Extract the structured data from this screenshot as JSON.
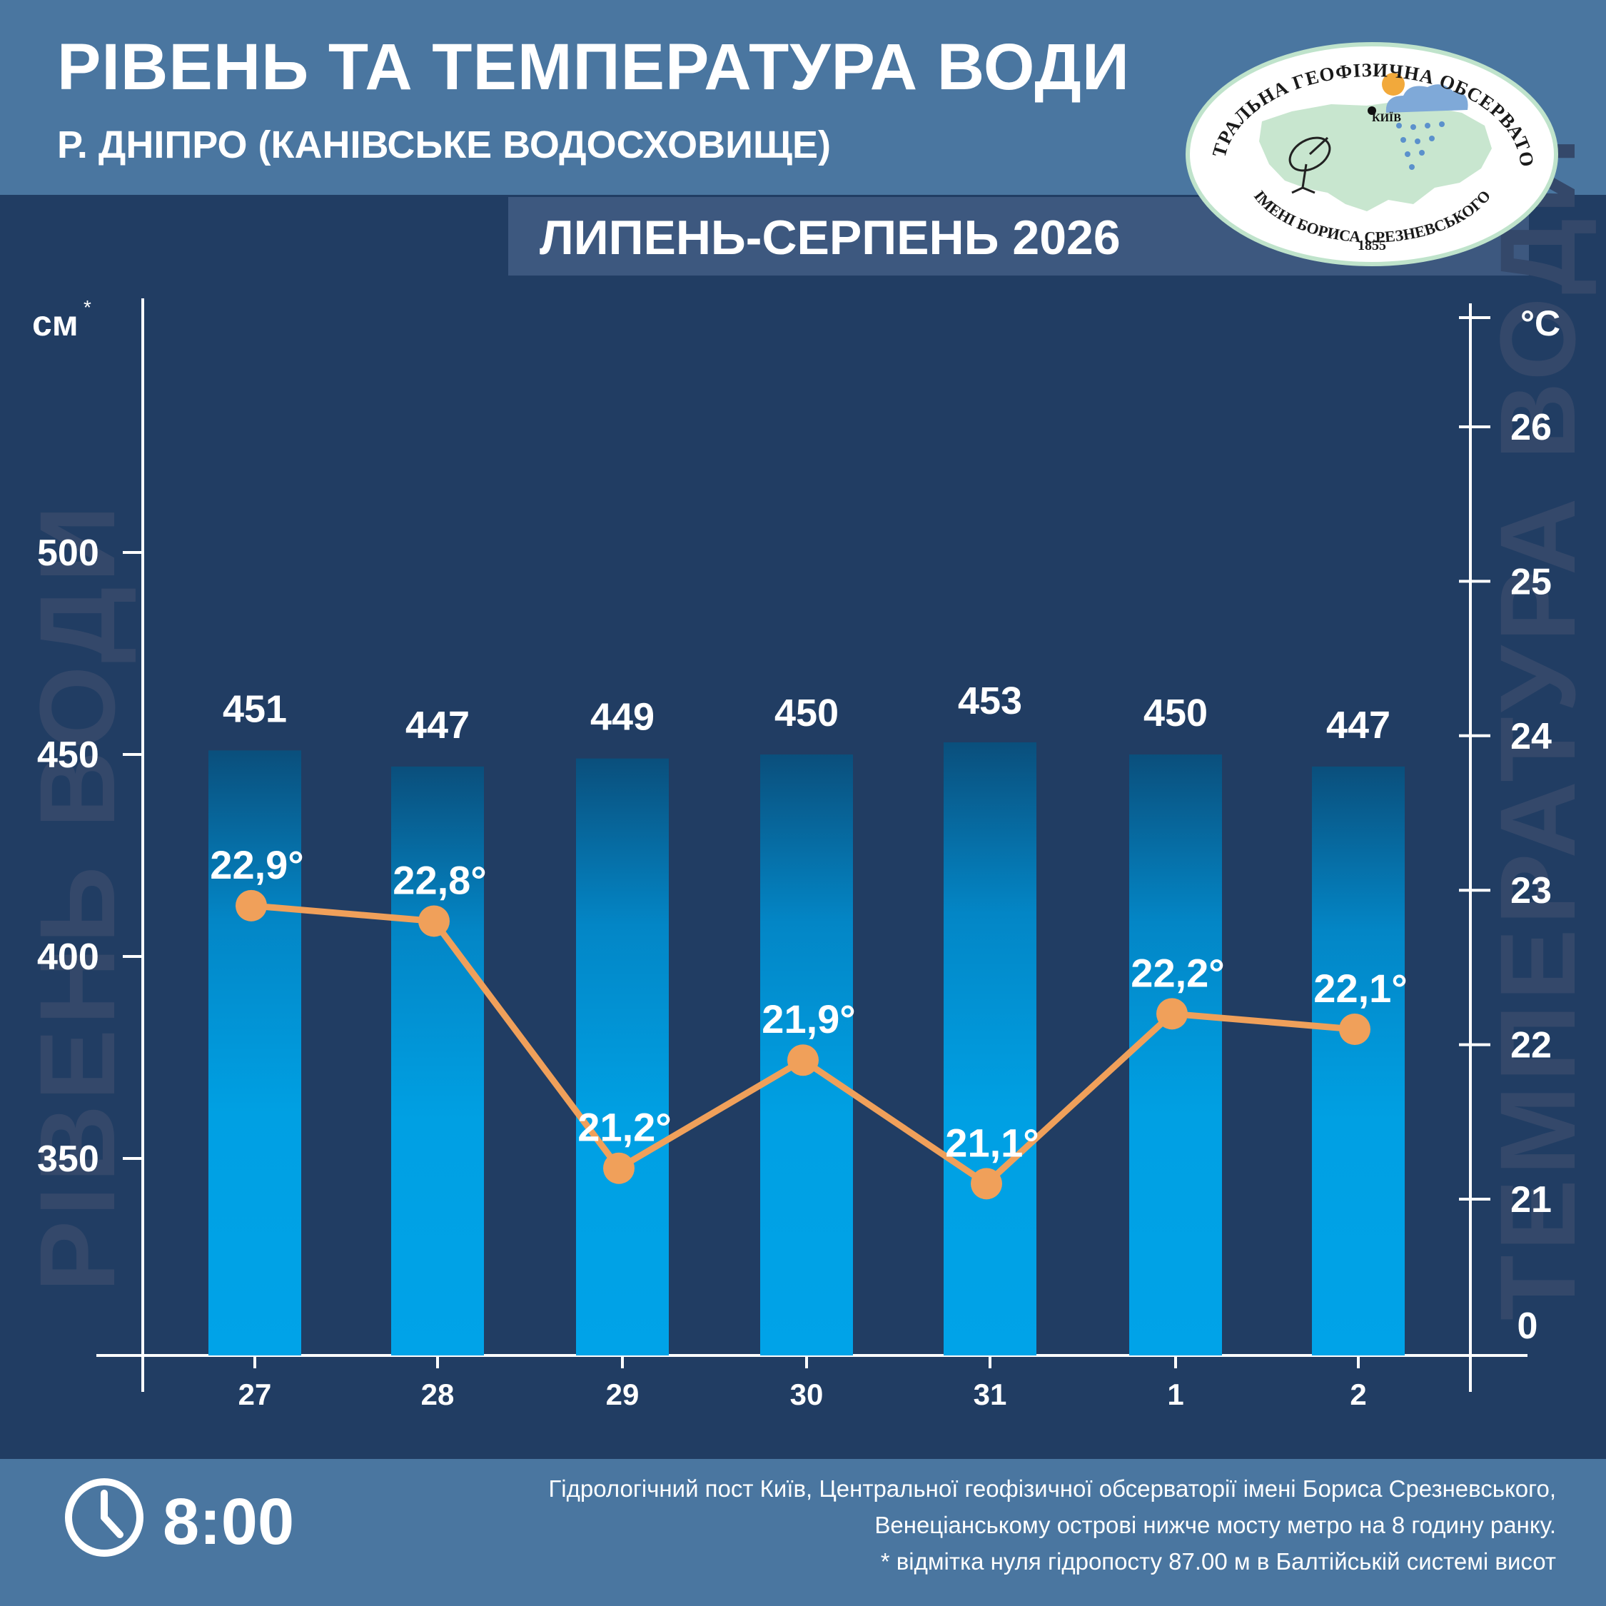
{
  "header": {
    "title": "РІВЕНЬ ТА ТЕМПЕРАТУРА ВОДИ",
    "subtitle": "Р. ДНІПРО (КАНІВСЬКЕ ВОДОСХОВИЩЕ)",
    "period": "ЛИПЕНЬ-СЕРПЕНЬ 2026"
  },
  "logo": {
    "top_text": "ЦЕНТРАЛЬНА ГЕОФІЗИЧНА ОБСЕРВАТОРІЯ",
    "bottom_text": "ІМЕНІ БОРИСА СРЕЗНЕВСЬКОГО",
    "year": "1855",
    "city": "КИЇВ"
  },
  "footer": {
    "time": "8:00",
    "note_line1": "Гідрологічний пост Київ, Центральної геофізичної обсерваторії імені Бориса Срезневського,",
    "note_line2": "Венеціанському острові нижче мосту метро  на 8 годину ранку.",
    "note_line3": "* відмітка нуля гідропосту 87.00 м в Балтійській системі висот"
  },
  "colors": {
    "background": "#213d63",
    "header": "#4a76a0",
    "bar_top": "#0a4f7c",
    "bar_bottom": "#00a3e8",
    "line": "#f0a05a",
    "watermark": "#34486a"
  },
  "chart_data": {
    "type": "bar+line",
    "categories": [
      "27",
      "28",
      "29",
      "30",
      "31",
      "1",
      "2"
    ],
    "level_axis": {
      "unit_label": "см",
      "unit_mark": "*",
      "ticks": [
        350,
        400,
        450,
        500
      ],
      "ylim": [
        300,
        560
      ],
      "watermark": "РІВЕНЬ ВОДИ"
    },
    "temp_axis": {
      "unit_label": "°C",
      "ticks": [
        21,
        22,
        23,
        24,
        25,
        26
      ],
      "zero_label": "0",
      "ylim": [
        20.2,
        26.8
      ],
      "watermark": "ТЕМПЕРАТУРА ВОДИ"
    },
    "series": [
      {
        "values": [
          451,
          447,
          449,
          450,
          453,
          450,
          447
        ],
        "labels": [
          "451",
          "447",
          "449",
          "450",
          "453",
          "450",
          "447"
        ]
      },
      {
        "values": [
          22.9,
          22.8,
          21.2,
          21.9,
          21.1,
          22.2,
          22.1
        ],
        "labels": [
          "22,9°",
          "22,8°",
          "21,2°",
          "21,9°",
          "21,1°",
          "22,2°",
          "22,1°"
        ]
      }
    ]
  }
}
